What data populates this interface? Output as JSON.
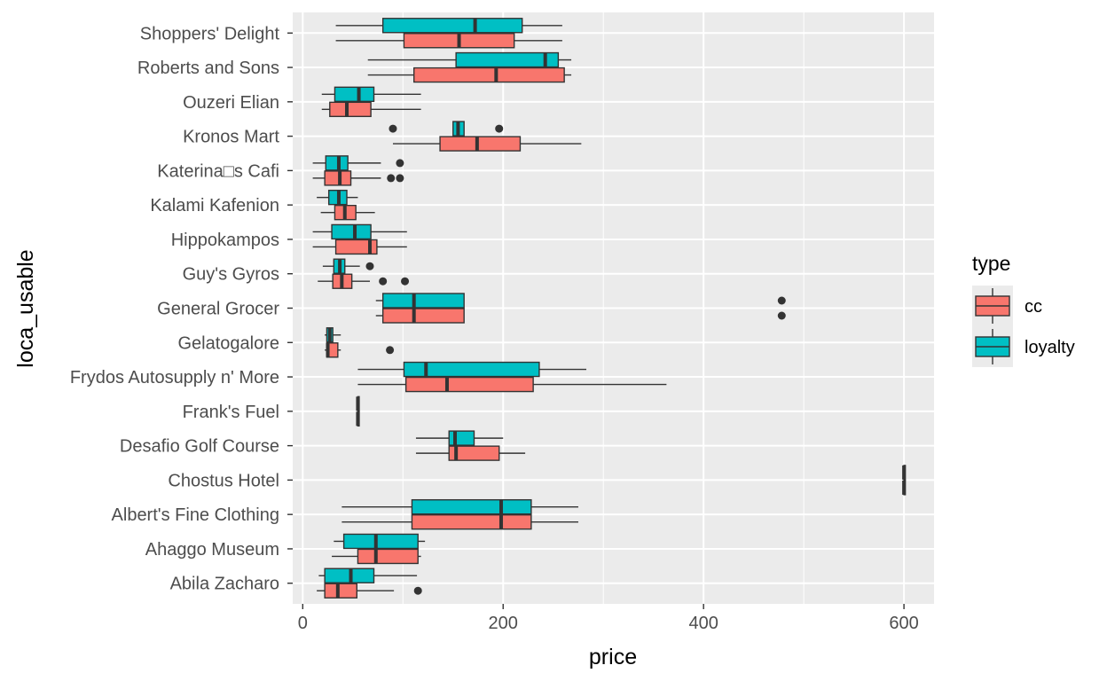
{
  "chart_data": {
    "type": "boxplot",
    "orientation": "horizontal",
    "title": "",
    "xlabel": "price",
    "ylabel": "loca_usable",
    "xlim": [
      -10,
      630
    ],
    "x_ticks": [
      0,
      200,
      400,
      600
    ],
    "x_tick_labels": [
      "0",
      "200",
      "400",
      "600"
    ],
    "grid": true,
    "legend": {
      "title": "type",
      "position": "right",
      "entries": [
        {
          "key": "cc",
          "label": "cc",
          "color": "#F8766D"
        },
        {
          "key": "loyalty",
          "label": "loyalty",
          "color": "#00BFC4"
        }
      ]
    },
    "categories": [
      "Shoppers' Delight",
      "Roberts and Sons",
      "Ouzeri Elian",
      "Kronos Mart",
      "Katerina□s Cafi",
      "Kalami Kafenion",
      "Hippokampos",
      "Guy's Gyros",
      "General Grocer",
      "Gelatogalore",
      "Frydos Autosupply n' More",
      "Frank's Fuel",
      "Desafio Golf Course",
      "Chostus Hotel",
      "Albert's Fine Clothing",
      "Ahaggo Museum",
      "Abila Zacharo"
    ],
    "boxes": [
      {
        "category": "Shoppers' Delight",
        "type": "loyalty",
        "min": 33,
        "q1": 80,
        "median": 172,
        "q3": 219,
        "max": 259,
        "outliers": []
      },
      {
        "category": "Shoppers' Delight",
        "type": "cc",
        "min": 33,
        "q1": 101,
        "median": 156,
        "q3": 211,
        "max": 259,
        "outliers": []
      },
      {
        "category": "Roberts and Sons",
        "type": "loyalty",
        "min": 65,
        "q1": 153,
        "median": 242,
        "q3": 255,
        "max": 268,
        "outliers": []
      },
      {
        "category": "Roberts and Sons",
        "type": "cc",
        "min": 65,
        "q1": 111,
        "median": 193,
        "q3": 261,
        "max": 268,
        "outliers": []
      },
      {
        "category": "Ouzeri Elian",
        "type": "loyalty",
        "min": 19,
        "q1": 32,
        "median": 56,
        "q3": 71,
        "max": 118,
        "outliers": []
      },
      {
        "category": "Ouzeri Elian",
        "type": "cc",
        "min": 19,
        "q1": 27,
        "median": 44,
        "q3": 68,
        "max": 118,
        "outliers": []
      },
      {
        "category": "Kronos Mart",
        "type": "loyalty",
        "min": 150,
        "q1": 150,
        "median": 155,
        "q3": 161,
        "max": 161,
        "outliers": [
          90,
          196
        ]
      },
      {
        "category": "Kronos Mart",
        "type": "cc",
        "min": 90,
        "q1": 137,
        "median": 174,
        "q3": 217,
        "max": 278,
        "outliers": []
      },
      {
        "category": "Katerina□s Cafi",
        "type": "loyalty",
        "min": 10,
        "q1": 23,
        "median": 36,
        "q3": 45,
        "max": 78,
        "outliers": [
          97
        ]
      },
      {
        "category": "Katerina□s Cafi",
        "type": "cc",
        "min": 10,
        "q1": 22,
        "median": 37,
        "q3": 48,
        "max": 78,
        "outliers": [
          88,
          97
        ]
      },
      {
        "category": "Kalami Kafenion",
        "type": "loyalty",
        "min": 14,
        "q1": 26,
        "median": 36,
        "q3": 44,
        "max": 55,
        "outliers": []
      },
      {
        "category": "Kalami Kafenion",
        "type": "cc",
        "min": 18,
        "q1": 32,
        "median": 42,
        "q3": 53,
        "max": 72,
        "outliers": []
      },
      {
        "category": "Hippokampos",
        "type": "loyalty",
        "min": 10,
        "q1": 29,
        "median": 52,
        "q3": 68,
        "max": 104,
        "outliers": []
      },
      {
        "category": "Hippokampos",
        "type": "cc",
        "min": 10,
        "q1": 33,
        "median": 67,
        "q3": 74,
        "max": 104,
        "outliers": []
      },
      {
        "category": "Guy's Gyros",
        "type": "loyalty",
        "min": 20,
        "q1": 31,
        "median": 37,
        "q3": 42,
        "max": 57,
        "outliers": [
          67
        ]
      },
      {
        "category": "Guy's Gyros",
        "type": "cc",
        "min": 15,
        "q1": 30,
        "median": 39,
        "q3": 49,
        "max": 67,
        "outliers": [
          80,
          102
        ]
      },
      {
        "category": "General Grocer",
        "type": "loyalty",
        "min": 73,
        "q1": 80,
        "median": 111,
        "q3": 161,
        "max": 161,
        "outliers": [
          478
        ]
      },
      {
        "category": "General Grocer",
        "type": "cc",
        "min": 73,
        "q1": 80,
        "median": 111,
        "q3": 161,
        "max": 161,
        "outliers": [
          478
        ]
      },
      {
        "category": "Gelatogalore",
        "type": "loyalty",
        "min": 22,
        "q1": 24,
        "median": 27,
        "q3": 30,
        "max": 38,
        "outliers": []
      },
      {
        "category": "Gelatogalore",
        "type": "cc",
        "min": 22,
        "q1": 24,
        "median": 25,
        "q3": 35,
        "max": 38,
        "outliers": [
          87
        ]
      },
      {
        "category": "Frydos Autosupply n' More",
        "type": "loyalty",
        "min": 55,
        "q1": 101,
        "median": 123,
        "q3": 236,
        "max": 283,
        "outliers": []
      },
      {
        "category": "Frydos Autosupply n' More",
        "type": "cc",
        "min": 55,
        "q1": 103,
        "median": 144,
        "q3": 230,
        "max": 363,
        "outliers": []
      },
      {
        "category": "Frank's Fuel",
        "type": "loyalty",
        "min": 55,
        "q1": 55,
        "median": 55,
        "q3": 55,
        "max": 55,
        "outliers": []
      },
      {
        "category": "Frank's Fuel",
        "type": "cc",
        "min": 55,
        "q1": 55,
        "median": 55,
        "q3": 55,
        "max": 55,
        "outliers": []
      },
      {
        "category": "Desafio Golf Course",
        "type": "loyalty",
        "min": 113,
        "q1": 146,
        "median": 152,
        "q3": 171,
        "max": 200,
        "outliers": []
      },
      {
        "category": "Desafio Golf Course",
        "type": "cc",
        "min": 113,
        "q1": 146,
        "median": 153,
        "q3": 196,
        "max": 222,
        "outliers": []
      },
      {
        "category": "Chostus Hotel",
        "type": "loyalty",
        "min": 600,
        "q1": 600,
        "median": 600,
        "q3": 600,
        "max": 600,
        "outliers": []
      },
      {
        "category": "Chostus Hotel",
        "type": "cc",
        "min": 600,
        "q1": 600,
        "median": 600,
        "q3": 600,
        "max": 600,
        "outliers": []
      },
      {
        "category": "Albert's Fine Clothing",
        "type": "loyalty",
        "min": 39,
        "q1": 109,
        "median": 198,
        "q3": 228,
        "max": 275,
        "outliers": []
      },
      {
        "category": "Albert's Fine Clothing",
        "type": "cc",
        "min": 39,
        "q1": 109,
        "median": 198,
        "q3": 228,
        "max": 275,
        "outliers": []
      },
      {
        "category": "Ahaggo Museum",
        "type": "loyalty",
        "min": 31,
        "q1": 41,
        "median": 73,
        "q3": 115,
        "max": 122,
        "outliers": []
      },
      {
        "category": "Ahaggo Museum",
        "type": "cc",
        "min": 29,
        "q1": 55,
        "median": 73,
        "q3": 115,
        "max": 118,
        "outliers": []
      },
      {
        "category": "Abila Zacharo",
        "type": "loyalty",
        "min": 16,
        "q1": 22,
        "median": 48,
        "q3": 71,
        "max": 114,
        "outliers": []
      },
      {
        "category": "Abila Zacharo",
        "type": "cc",
        "min": 14,
        "q1": 22,
        "median": 35,
        "q3": 54,
        "max": 91,
        "outliers": [
          115
        ]
      }
    ]
  }
}
